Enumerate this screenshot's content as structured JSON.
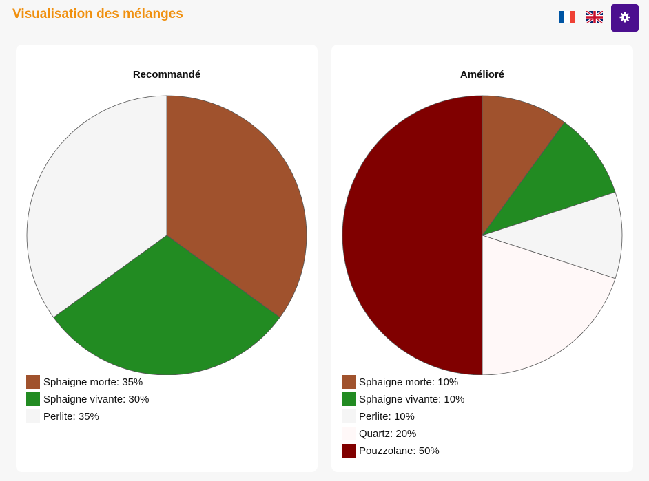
{
  "header": {
    "title": "Visualisation des mélanges",
    "lang_fr_icon": "french-flag-icon",
    "lang_gb_icon": "uk-flag-icon",
    "settings_icon": "gear-icon",
    "accent": "#f0900f",
    "settings_color": "#4b0f8f"
  },
  "chart_data": [
    {
      "type": "pie",
      "title": "Recommandé",
      "slices": [
        {
          "label": "Sphaigne morte",
          "value": 35,
          "color": "#a0522d",
          "legend": "Sphaigne morte: 35%"
        },
        {
          "label": "Sphaigne vivante",
          "value": 30,
          "color": "#228b22",
          "legend": "Sphaigne vivante: 30%"
        },
        {
          "label": "Perlite",
          "value": 35,
          "color": "#f5f5f5",
          "legend": "Perlite: 35%"
        }
      ]
    },
    {
      "type": "pie",
      "title": "Amélioré",
      "slices": [
        {
          "label": "Sphaigne morte",
          "value": 10,
          "color": "#a0522d",
          "legend": "Sphaigne morte: 10%"
        },
        {
          "label": "Sphaigne vivante",
          "value": 10,
          "color": "#228b22",
          "legend": "Sphaigne vivante: 10%"
        },
        {
          "label": "Perlite",
          "value": 10,
          "color": "#f5f5f5",
          "legend": "Perlite: 10%"
        },
        {
          "label": "Quartz",
          "value": 20,
          "color": "#fff8f8",
          "legend": "Quartz: 20%"
        },
        {
          "label": "Pouzzolane",
          "value": 50,
          "color": "#800000",
          "legend": "Pouzzolane: 50%"
        }
      ]
    }
  ]
}
